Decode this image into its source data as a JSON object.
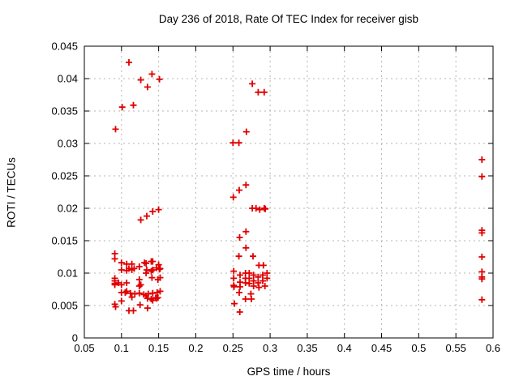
{
  "window": {
    "background": "#ffffff",
    "text_color": "#000000"
  },
  "chart_data": {
    "type": "scatter",
    "title": "Day 236 of 2018, Rate Of TEC Index for receiver gisb",
    "xlabel": "GPS time / hours",
    "ylabel": "ROTI / TECUs",
    "xlim": [
      0.05,
      0.6
    ],
    "ylim": [
      0,
      0.045
    ],
    "grid": true,
    "legend": "none",
    "grid_color": "#b4b4b4",
    "axis_color": "#000000",
    "marker": {
      "shape": "plus",
      "color": "#e00000",
      "size": 8,
      "stroke": 1.8
    },
    "xticks": {
      "values": [
        0.05,
        0.1,
        0.15,
        0.2,
        0.25,
        0.3,
        0.35,
        0.4,
        0.45,
        0.5,
        0.55,
        0.6
      ],
      "labels": [
        "0.05",
        "0.1",
        "0.15",
        "0.2",
        "0.25",
        "0.3",
        "0.35",
        "0.4",
        "0.45",
        "0.5",
        "0.55",
        "0.6"
      ]
    },
    "yticks": {
      "values": [
        0,
        0.005,
        0.01,
        0.015,
        0.02,
        0.025,
        0.03,
        0.035,
        0.04,
        0.045
      ],
      "labels": [
        "0",
        "0.005",
        "0.01",
        "0.015",
        "0.02",
        "0.025",
        "0.03",
        "0.035",
        "0.04",
        "0.045"
      ]
    },
    "series": [
      {
        "name": "ROTI",
        "points": [
          [
            0.11,
            0.0425
          ],
          [
            0.126,
            0.0398
          ],
          [
            0.141,
            0.0407
          ],
          [
            0.151,
            0.0399
          ],
          [
            0.135,
            0.0387
          ],
          [
            0.101,
            0.0356
          ],
          [
            0.116,
            0.0359
          ],
          [
            0.092,
            0.0322
          ],
          [
            0.126,
            0.0182
          ],
          [
            0.134,
            0.0188
          ],
          [
            0.142,
            0.0195
          ],
          [
            0.15,
            0.0198
          ],
          [
            0.091,
            0.013
          ],
          [
            0.091,
            0.0122
          ],
          [
            0.091,
            0.0092
          ],
          [
            0.091,
            0.0088
          ],
          [
            0.091,
            0.0084
          ],
          [
            0.091,
            0.0082
          ],
          [
            0.091,
            0.0052
          ],
          [
            0.092,
            0.0048
          ],
          [
            0.096,
            0.0085
          ],
          [
            0.1,
            0.0116
          ],
          [
            0.1,
            0.0105
          ],
          [
            0.1,
            0.0082
          ],
          [
            0.1,
            0.007
          ],
          [
            0.1,
            0.0057
          ],
          [
            0.105,
            0.007
          ],
          [
            0.107,
            0.0114
          ],
          [
            0.107,
            0.0104
          ],
          [
            0.107,
            0.0085
          ],
          [
            0.107,
            0.0072
          ],
          [
            0.11,
            0.0042
          ],
          [
            0.11,
            0.0107
          ],
          [
            0.112,
            0.0069
          ],
          [
            0.114,
            0.0114
          ],
          [
            0.114,
            0.0105
          ],
          [
            0.114,
            0.0063
          ],
          [
            0.116,
            0.0042
          ],
          [
            0.117,
            0.0107
          ],
          [
            0.118,
            0.0068
          ],
          [
            0.124,
            0.011
          ],
          [
            0.124,
            0.009
          ],
          [
            0.124,
            0.008
          ],
          [
            0.124,
            0.0069
          ],
          [
            0.125,
            0.0051
          ],
          [
            0.126,
            0.0082
          ],
          [
            0.13,
            0.0067
          ],
          [
            0.131,
            0.0116
          ],
          [
            0.133,
            0.0115
          ],
          [
            0.133,
            0.01
          ],
          [
            0.133,
            0.0065
          ],
          [
            0.134,
            0.0105
          ],
          [
            0.135,
            0.0046
          ],
          [
            0.135,
            0.0061
          ],
          [
            0.136,
            0.0068
          ],
          [
            0.14,
            0.0118
          ],
          [
            0.14,
            0.0103
          ],
          [
            0.14,
            0.006
          ],
          [
            0.141,
            0.0093
          ],
          [
            0.142,
            0.0118
          ],
          [
            0.142,
            0.0105
          ],
          [
            0.142,
            0.0069
          ],
          [
            0.142,
            0.0058
          ],
          [
            0.146,
            0.0062
          ],
          [
            0.147,
            0.0108
          ],
          [
            0.147,
            0.0061
          ],
          [
            0.148,
            0.007
          ],
          [
            0.149,
            0.009
          ],
          [
            0.149,
            0.0062
          ],
          [
            0.15,
            0.0113
          ],
          [
            0.151,
            0.0106
          ],
          [
            0.152,
            0.0107
          ],
          [
            0.152,
            0.0093
          ],
          [
            0.152,
            0.0072
          ],
          [
            0.276,
            0.0392
          ],
          [
            0.284,
            0.0379
          ],
          [
            0.292,
            0.0379
          ],
          [
            0.268,
            0.0318
          ],
          [
            0.25,
            0.0301
          ],
          [
            0.258,
            0.0301
          ],
          [
            0.2675,
            0.0236
          ],
          [
            0.2584,
            0.0228
          ],
          [
            0.2505,
            0.0217
          ],
          [
            0.276,
            0.02
          ],
          [
            0.281,
            0.02
          ],
          [
            0.286,
            0.0198
          ],
          [
            0.292,
            0.02
          ],
          [
            0.2935,
            0.0199
          ],
          [
            0.2675,
            0.0164
          ],
          [
            0.259,
            0.0155
          ],
          [
            0.2675,
            0.0139
          ],
          [
            0.258,
            0.0126
          ],
          [
            0.277,
            0.0126
          ],
          [
            0.285,
            0.0112
          ],
          [
            0.291,
            0.0112
          ],
          [
            0.251,
            0.0103
          ],
          [
            0.251,
            0.0092
          ],
          [
            0.251,
            0.0081
          ],
          [
            0.2515,
            0.0079
          ],
          [
            0.2595,
            0.0097
          ],
          [
            0.2595,
            0.0086
          ],
          [
            0.2595,
            0.0079
          ],
          [
            0.2668,
            0.01
          ],
          [
            0.2668,
            0.0092
          ],
          [
            0.2668,
            0.0085
          ],
          [
            0.2719,
            0.01
          ],
          [
            0.2719,
            0.0092
          ],
          [
            0.2719,
            0.0084
          ],
          [
            0.2777,
            0.0097
          ],
          [
            0.2777,
            0.0088
          ],
          [
            0.2777,
            0.008
          ],
          [
            0.2839,
            0.0094
          ],
          [
            0.2839,
            0.0085
          ],
          [
            0.285,
            0.0078
          ],
          [
            0.2901,
            0.0097
          ],
          [
            0.2901,
            0.0088
          ],
          [
            0.293,
            0.008
          ],
          [
            0.2959,
            0.01
          ],
          [
            0.2959,
            0.0092
          ],
          [
            0.2584,
            0.007
          ],
          [
            0.2741,
            0.0068
          ],
          [
            0.2668,
            0.006
          ],
          [
            0.2748,
            0.006
          ],
          [
            0.2519,
            0.0053
          ],
          [
            0.2592,
            0.004
          ],
          [
            0.585,
            0.0275
          ],
          [
            0.585,
            0.0249
          ],
          [
            0.585,
            0.0166
          ],
          [
            0.585,
            0.0162
          ],
          [
            0.585,
            0.0125
          ],
          [
            0.585,
            0.0102
          ],
          [
            0.585,
            0.0094
          ],
          [
            0.585,
            0.0091
          ],
          [
            0.585,
            0.0059
          ]
        ]
      }
    ]
  }
}
